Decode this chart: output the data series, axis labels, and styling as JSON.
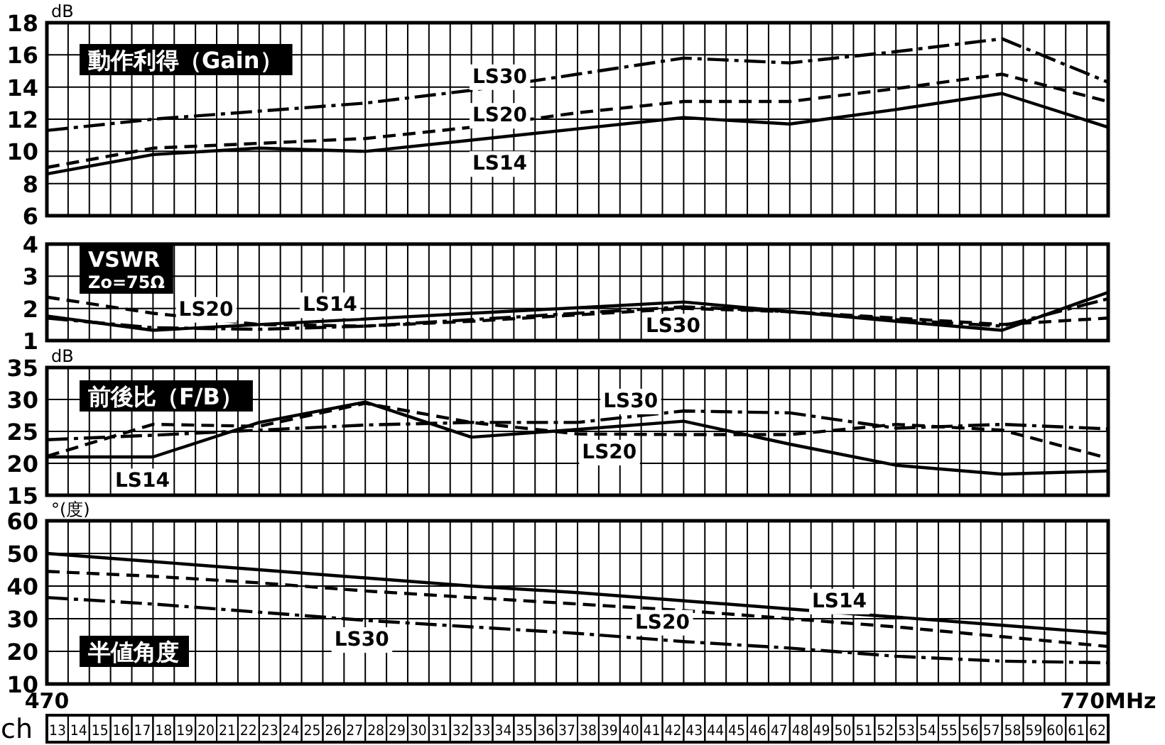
{
  "chart_data": [
    {
      "type": "line",
      "title": "動作利得（Gain）",
      "ylabel": "dB",
      "x": [
        470,
        500,
        530,
        560,
        590,
        620,
        650,
        680,
        710,
        740,
        770
      ],
      "xlim": [
        470,
        770
      ],
      "ylim": [
        6,
        18
      ],
      "yticks": [
        6,
        8,
        10,
        12,
        14,
        16,
        18
      ],
      "grid": true,
      "tick_labels": "y",
      "xticks": [
        {
          "value": 476,
          "label": null
        },
        {
          "value": 482,
          "label": null
        },
        {
          "value": 488,
          "label": null
        },
        {
          "value": 494,
          "label": null
        },
        {
          "value": 500,
          "label": null
        },
        {
          "value": 506,
          "label": null
        },
        {
          "value": 512,
          "label": null
        },
        {
          "value": 518,
          "label": null
        },
        {
          "value": 524,
          "label": null
        },
        {
          "value": 530,
          "label": null
        },
        {
          "value": 536,
          "label": null
        },
        {
          "value": 542,
          "label": null
        },
        {
          "value": 548,
          "label": null
        },
        {
          "value": 554,
          "label": null
        },
        {
          "value": 560,
          "label": null
        },
        {
          "value": 566,
          "label": null
        },
        {
          "value": 572,
          "label": null
        },
        {
          "value": 578,
          "label": null
        },
        {
          "value": 584,
          "label": null
        },
        {
          "value": 590,
          "label": null
        },
        {
          "value": 596,
          "label": null
        },
        {
          "value": 602,
          "label": null
        },
        {
          "value": 608,
          "label": null
        },
        {
          "value": 614,
          "label": null
        },
        {
          "value": 620,
          "label": null
        },
        {
          "value": 626,
          "label": null
        },
        {
          "value": 632,
          "label": null
        },
        {
          "value": 638,
          "label": null
        },
        {
          "value": 644,
          "label": null
        },
        {
          "value": 650,
          "label": null
        },
        {
          "value": 656,
          "label": null
        },
        {
          "value": 662,
          "label": null
        },
        {
          "value": 668,
          "label": null
        },
        {
          "value": 674,
          "label": null
        },
        {
          "value": 680,
          "label": null
        },
        {
          "value": 686,
          "label": null
        },
        {
          "value": 692,
          "label": null
        },
        {
          "value": 698,
          "label": null
        },
        {
          "value": 704,
          "label": null
        },
        {
          "value": 710,
          "label": null
        },
        {
          "value": 716,
          "label": null
        },
        {
          "value": 722,
          "label": null
        },
        {
          "value": 728,
          "label": null
        },
        {
          "value": 734,
          "label": null
        },
        {
          "value": 740,
          "label": null
        },
        {
          "value": 746,
          "label": null
        },
        {
          "value": 752,
          "label": null
        },
        {
          "value": 758,
          "label": null
        },
        {
          "value": 764,
          "label": null
        }
      ],
      "series": [
        {
          "name": "LS14",
          "color": "#000000",
          "line_style": "solid",
          "values": [
            8.6,
            9.8,
            10.2,
            10,
            10.7,
            11.4,
            12.1,
            11.7,
            12.6,
            13.6,
            11.5
          ]
        },
        {
          "name": "LS20",
          "color": "#000000",
          "line_style": "dashed",
          "values": [
            9,
            10.2,
            10.5,
            10.8,
            11.5,
            12.4,
            13.1,
            13.1,
            13.9,
            14.8,
            13.1
          ]
        },
        {
          "name": "LS30",
          "color": "#000000",
          "line_style": "dashdot",
          "values": [
            11.3,
            12,
            12.5,
            13,
            13.8,
            14.8,
            15.8,
            15.5,
            16.2,
            17,
            14.3
          ]
        }
      ]
    },
    {
      "type": "line",
      "title": "VSWR",
      "subtitle": "Zo=75Ω",
      "x": [
        470,
        500,
        530,
        560,
        590,
        620,
        650,
        680,
        710,
        740,
        770
      ],
      "xlim": [
        470,
        770
      ],
      "ylim": [
        1,
        4
      ],
      "yticks": [
        1,
        2,
        3,
        4
      ],
      "grid": true,
      "tick_labels": "y",
      "xticks": [
        {
          "value": 476,
          "label": null
        },
        {
          "value": 482,
          "label": null
        },
        {
          "value": 488,
          "label": null
        },
        {
          "value": 494,
          "label": null
        },
        {
          "value": 500,
          "label": null
        },
        {
          "value": 506,
          "label": null
        },
        {
          "value": 512,
          "label": null
        },
        {
          "value": 518,
          "label": null
        },
        {
          "value": 524,
          "label": null
        },
        {
          "value": 530,
          "label": null
        },
        {
          "value": 536,
          "label": null
        },
        {
          "value": 542,
          "label": null
        },
        {
          "value": 548,
          "label": null
        },
        {
          "value": 554,
          "label": null
        },
        {
          "value": 560,
          "label": null
        },
        {
          "value": 566,
          "label": null
        },
        {
          "value": 572,
          "label": null
        },
        {
          "value": 578,
          "label": null
        },
        {
          "value": 584,
          "label": null
        },
        {
          "value": 590,
          "label": null
        },
        {
          "value": 596,
          "label": null
        },
        {
          "value": 602,
          "label": null
        },
        {
          "value": 608,
          "label": null
        },
        {
          "value": 614,
          "label": null
        },
        {
          "value": 620,
          "label": null
        },
        {
          "value": 626,
          "label": null
        },
        {
          "value": 632,
          "label": null
        },
        {
          "value": 638,
          "label": null
        },
        {
          "value": 644,
          "label": null
        },
        {
          "value": 650,
          "label": null
        },
        {
          "value": 656,
          "label": null
        },
        {
          "value": 662,
          "label": null
        },
        {
          "value": 668,
          "label": null
        },
        {
          "value": 674,
          "label": null
        },
        {
          "value": 680,
          "label": null
        },
        {
          "value": 686,
          "label": null
        },
        {
          "value": 692,
          "label": null
        },
        {
          "value": 698,
          "label": null
        },
        {
          "value": 704,
          "label": null
        },
        {
          "value": 710,
          "label": null
        },
        {
          "value": 716,
          "label": null
        },
        {
          "value": 722,
          "label": null
        },
        {
          "value": 728,
          "label": null
        },
        {
          "value": 734,
          "label": null
        },
        {
          "value": 740,
          "label": null
        },
        {
          "value": 746,
          "label": null
        },
        {
          "value": 752,
          "label": null
        },
        {
          "value": 758,
          "label": null
        },
        {
          "value": 764,
          "label": null
        }
      ],
      "series": [
        {
          "name": "LS14",
          "color": "#000000",
          "line_style": "solid",
          "values": [
            1.76,
            1.32,
            1.5,
            1.67,
            1.85,
            2.02,
            2.2,
            1.9,
            1.6,
            1.32,
            2.5
          ]
        },
        {
          "name": "LS20",
          "color": "#000000",
          "line_style": "dashed",
          "values": [
            2.35,
            1.85,
            1.5,
            1.45,
            1.6,
            1.8,
            2,
            1.9,
            1.7,
            1.5,
            1.7
          ]
        },
        {
          "name": "LS30",
          "color": "#000000",
          "line_style": "dashdot",
          "values": [
            1.7,
            1.4,
            1.35,
            1.45,
            1.65,
            1.85,
            2.05,
            1.9,
            1.65,
            1.45,
            2.3
          ]
        }
      ]
    },
    {
      "type": "line",
      "title": "前後比（F/B）",
      "ylabel": "dB",
      "x": [
        470,
        500,
        530,
        560,
        590,
        620,
        650,
        680,
        710,
        740,
        770
      ],
      "xlim": [
        470,
        770
      ],
      "ylim": [
        15,
        35
      ],
      "yticks": [
        15,
        20,
        25,
        30,
        35
      ],
      "grid": true,
      "tick_labels": "y",
      "xticks": [
        {
          "value": 476,
          "label": null
        },
        {
          "value": 482,
          "label": null
        },
        {
          "value": 488,
          "label": null
        },
        {
          "value": 494,
          "label": null
        },
        {
          "value": 500,
          "label": null
        },
        {
          "value": 506,
          "label": null
        },
        {
          "value": 512,
          "label": null
        },
        {
          "value": 518,
          "label": null
        },
        {
          "value": 524,
          "label": null
        },
        {
          "value": 530,
          "label": null
        },
        {
          "value": 536,
          "label": null
        },
        {
          "value": 542,
          "label": null
        },
        {
          "value": 548,
          "label": null
        },
        {
          "value": 554,
          "label": null
        },
        {
          "value": 560,
          "label": null
        },
        {
          "value": 566,
          "label": null
        },
        {
          "value": 572,
          "label": null
        },
        {
          "value": 578,
          "label": null
        },
        {
          "value": 584,
          "label": null
        },
        {
          "value": 590,
          "label": null
        },
        {
          "value": 596,
          "label": null
        },
        {
          "value": 602,
          "label": null
        },
        {
          "value": 608,
          "label": null
        },
        {
          "value": 614,
          "label": null
        },
        {
          "value": 620,
          "label": null
        },
        {
          "value": 626,
          "label": null
        },
        {
          "value": 632,
          "label": null
        },
        {
          "value": 638,
          "label": null
        },
        {
          "value": 644,
          "label": null
        },
        {
          "value": 650,
          "label": null
        },
        {
          "value": 656,
          "label": null
        },
        {
          "value": 662,
          "label": null
        },
        {
          "value": 668,
          "label": null
        },
        {
          "value": 674,
          "label": null
        },
        {
          "value": 680,
          "label": null
        },
        {
          "value": 686,
          "label": null
        },
        {
          "value": 692,
          "label": null
        },
        {
          "value": 698,
          "label": null
        },
        {
          "value": 704,
          "label": null
        },
        {
          "value": 710,
          "label": null
        },
        {
          "value": 716,
          "label": null
        },
        {
          "value": 722,
          "label": null
        },
        {
          "value": 728,
          "label": null
        },
        {
          "value": 734,
          "label": null
        },
        {
          "value": 740,
          "label": null
        },
        {
          "value": 746,
          "label": null
        },
        {
          "value": 752,
          "label": null
        },
        {
          "value": 758,
          "label": null
        },
        {
          "value": 764,
          "label": null
        }
      ],
      "series": [
        {
          "name": "LS14",
          "color": "#000000",
          "line_style": "solid",
          "values": [
            21,
            21,
            26.4,
            29.6,
            24.1,
            25.3,
            26.6,
            23,
            19.7,
            18.3,
            18.8
          ]
        },
        {
          "name": "LS20",
          "color": "#000000",
          "line_style": "dashed",
          "values": [
            21.1,
            26.1,
            25.8,
            29.4,
            26.4,
            24.6,
            24.5,
            24.5,
            26.1,
            25.2,
            20.8
          ]
        },
        {
          "name": "LS30",
          "color": "#000000",
          "line_style": "dashdot",
          "values": [
            23.7,
            24.4,
            25.2,
            26,
            26.4,
            26.4,
            28.2,
            27.9,
            25.5,
            26.1,
            25.4
          ]
        }
      ]
    },
    {
      "type": "line",
      "title": "半値角度",
      "ylabel": "°(度)",
      "x": [
        470,
        500,
        530,
        560,
        590,
        620,
        650,
        680,
        710,
        740,
        770
      ],
      "xlim": [
        470,
        770
      ],
      "ylim": [
        10,
        60
      ],
      "yticks": [
        10,
        20,
        30,
        40,
        50,
        60
      ],
      "grid": true,
      "xticks": [
        470,
        {
          "value": 476,
          "label": null
        },
        {
          "value": 482,
          "label": null
        },
        {
          "value": 488,
          "label": null
        },
        {
          "value": 494,
          "label": null
        },
        {
          "value": 500,
          "label": null
        },
        {
          "value": 506,
          "label": null
        },
        {
          "value": 512,
          "label": null
        },
        {
          "value": 518,
          "label": null
        },
        {
          "value": 524,
          "label": null
        },
        {
          "value": 530,
          "label": null
        },
        {
          "value": 536,
          "label": null
        },
        {
          "value": 542,
          "label": null
        },
        {
          "value": 548,
          "label": null
        },
        {
          "value": 554,
          "label": null
        },
        {
          "value": 560,
          "label": null
        },
        {
          "value": 566,
          "label": null
        },
        {
          "value": 572,
          "label": null
        },
        {
          "value": 578,
          "label": null
        },
        {
          "value": 584,
          "label": null
        },
        {
          "value": 590,
          "label": null
        },
        {
          "value": 596,
          "label": null
        },
        {
          "value": 602,
          "label": null
        },
        {
          "value": 608,
          "label": null
        },
        {
          "value": 614,
          "label": null
        },
        {
          "value": 620,
          "label": null
        },
        {
          "value": 626,
          "label": null
        },
        {
          "value": 632,
          "label": null
        },
        {
          "value": 638,
          "label": null
        },
        {
          "value": 644,
          "label": null
        },
        {
          "value": 650,
          "label": null
        },
        {
          "value": 656,
          "label": null
        },
        {
          "value": 662,
          "label": null
        },
        {
          "value": 668,
          "label": null
        },
        {
          "value": 674,
          "label": null
        },
        {
          "value": 680,
          "label": null
        },
        {
          "value": 686,
          "label": null
        },
        {
          "value": 692,
          "label": null
        },
        {
          "value": 698,
          "label": null
        },
        {
          "value": 704,
          "label": null
        },
        {
          "value": 710,
          "label": null
        },
        {
          "value": 716,
          "label": null
        },
        {
          "value": 722,
          "label": null
        },
        {
          "value": 728,
          "label": null
        },
        {
          "value": 734,
          "label": null
        },
        {
          "value": 740,
          "label": null
        },
        {
          "value": 746,
          "label": null
        },
        {
          "value": 752,
          "label": null
        },
        {
          "value": 758,
          "label": null
        },
        {
          "value": 764,
          "label": null
        },
        {
          "value": 770,
          "label": "770MHz"
        }
      ],
      "x2label": "ch",
      "x2lim": [
        12.5,
        62.5
      ],
      "x2ticks": [
        13,
        14,
        15,
        16,
        17,
        18,
        19,
        20,
        21,
        22,
        23,
        24,
        25,
        26,
        27,
        28,
        29,
        30,
        31,
        32,
        33,
        34,
        35,
        36,
        37,
        38,
        39,
        40,
        41,
        42,
        43,
        44,
        45,
        46,
        47,
        48,
        49,
        50,
        51,
        52,
        53,
        54,
        55,
        56,
        57,
        58,
        59,
        60,
        61,
        62
      ],
      "series": [
        {
          "name": "LS14",
          "color": "#000000",
          "line_style": "solid",
          "values": [
            50,
            47.5,
            45,
            42.5,
            40,
            38,
            35.5,
            33,
            30.5,
            28,
            25.5
          ]
        },
        {
          "name": "LS20",
          "color": "#000000",
          "line_style": "dashed",
          "values": [
            44.5,
            43,
            41,
            38.5,
            36.5,
            34.5,
            32.5,
            30,
            27.5,
            24.5,
            21.5
          ]
        },
        {
          "name": "LS30",
          "color": "#000000",
          "line_style": "dashdot",
          "values": [
            36.5,
            34.5,
            32,
            29.5,
            27.5,
            25.5,
            23,
            21,
            18.5,
            17,
            16.5
          ]
        }
      ]
    }
  ]
}
